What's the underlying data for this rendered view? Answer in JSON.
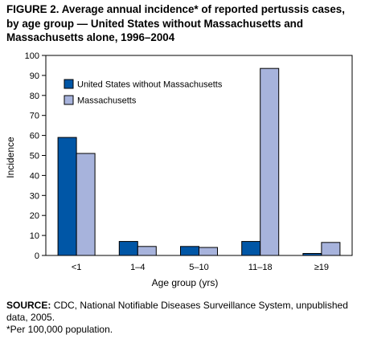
{
  "figure": {
    "title": "FIGURE 2. Average annual incidence* of reported pertussis cases, by age group — United States without Massachusetts and Massachusetts alone, 1996–2004",
    "source_label": "SOURCE:",
    "source_text": "CDC, National Notifiable Diseases Surveillance System, unpublished data, 2005.",
    "footnote": "*Per 100,000 population."
  },
  "colors": {
    "us": "#0056a6",
    "ma": "#a7b3dc",
    "stroke": "#000000"
  },
  "chart_data": {
    "type": "bar",
    "categories": [
      "<1",
      "1–4",
      "5–10",
      "11–18",
      "≥19"
    ],
    "series": [
      {
        "name": "United States without Massachusetts",
        "values": [
          59,
          7,
          4.5,
          7,
          1
        ]
      },
      {
        "name": "Massachusetts",
        "values": [
          51,
          4.5,
          4,
          93.5,
          6.5
        ]
      }
    ],
    "xlabel": "Age group (yrs)",
    "ylabel": "Incidence",
    "ylim": [
      0,
      100
    ],
    "yticks": [
      0,
      10,
      20,
      30,
      40,
      50,
      60,
      70,
      80,
      90,
      100
    ],
    "grid": false,
    "legend": "top-left"
  }
}
